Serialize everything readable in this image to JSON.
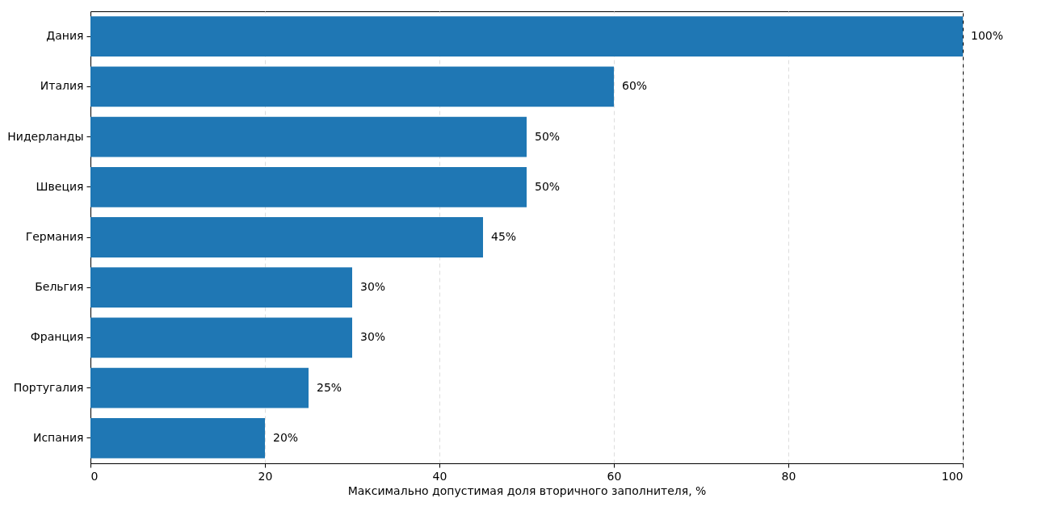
{
  "chart_data": {
    "type": "bar",
    "orientation": "horizontal",
    "xlabel": "Максимально допустимая доля вторичного заполнителя, %",
    "categories": [
      "Дания",
      "Италия",
      "Нидерланды",
      "Швеция",
      "Германия",
      "Бельгия",
      "Франция",
      "Португалия",
      "Испания"
    ],
    "values": [
      100,
      60,
      50,
      50,
      45,
      30,
      30,
      25,
      20
    ],
    "value_labels": [
      "100%",
      "60%",
      "50%",
      "50%",
      "45%",
      "30%",
      "30%",
      "25%",
      "20%"
    ],
    "color": "#1f77b4",
    "xlim": [
      0,
      100
    ],
    "xticks": [
      0,
      20,
      40,
      60,
      80,
      100
    ],
    "grid": "x"
  }
}
